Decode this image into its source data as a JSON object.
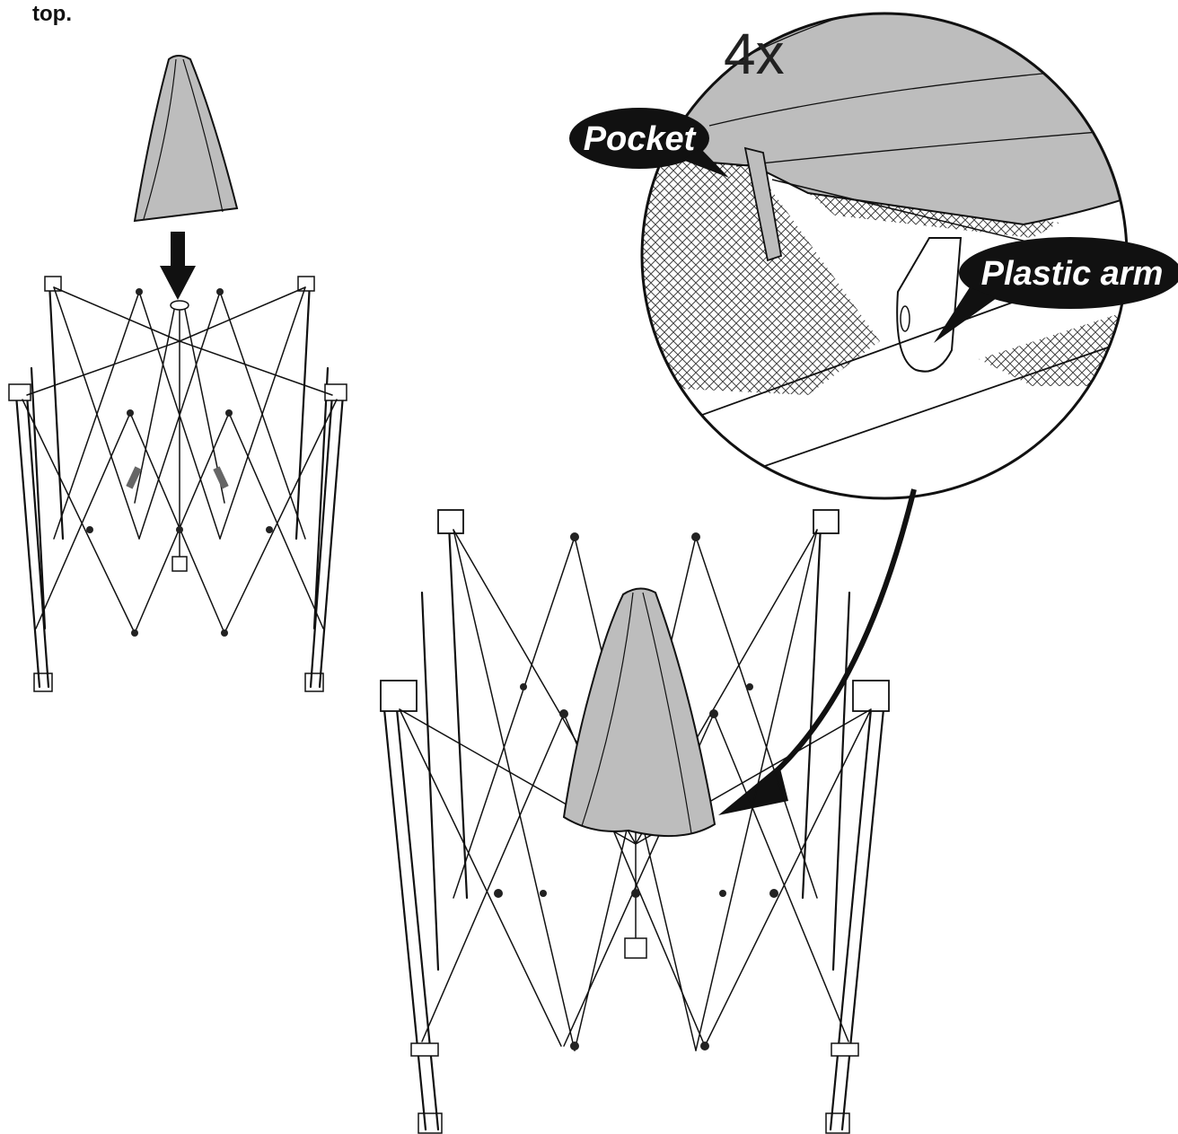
{
  "header": {
    "text": "top."
  },
  "detail": {
    "multiplier": "4x"
  },
  "callouts": {
    "pocket": "Pocket",
    "plastic_arm": "Plastic arm"
  },
  "colors": {
    "canopy_fill": "#bdbdbd",
    "line": "#111111",
    "mesh": "#444444"
  }
}
